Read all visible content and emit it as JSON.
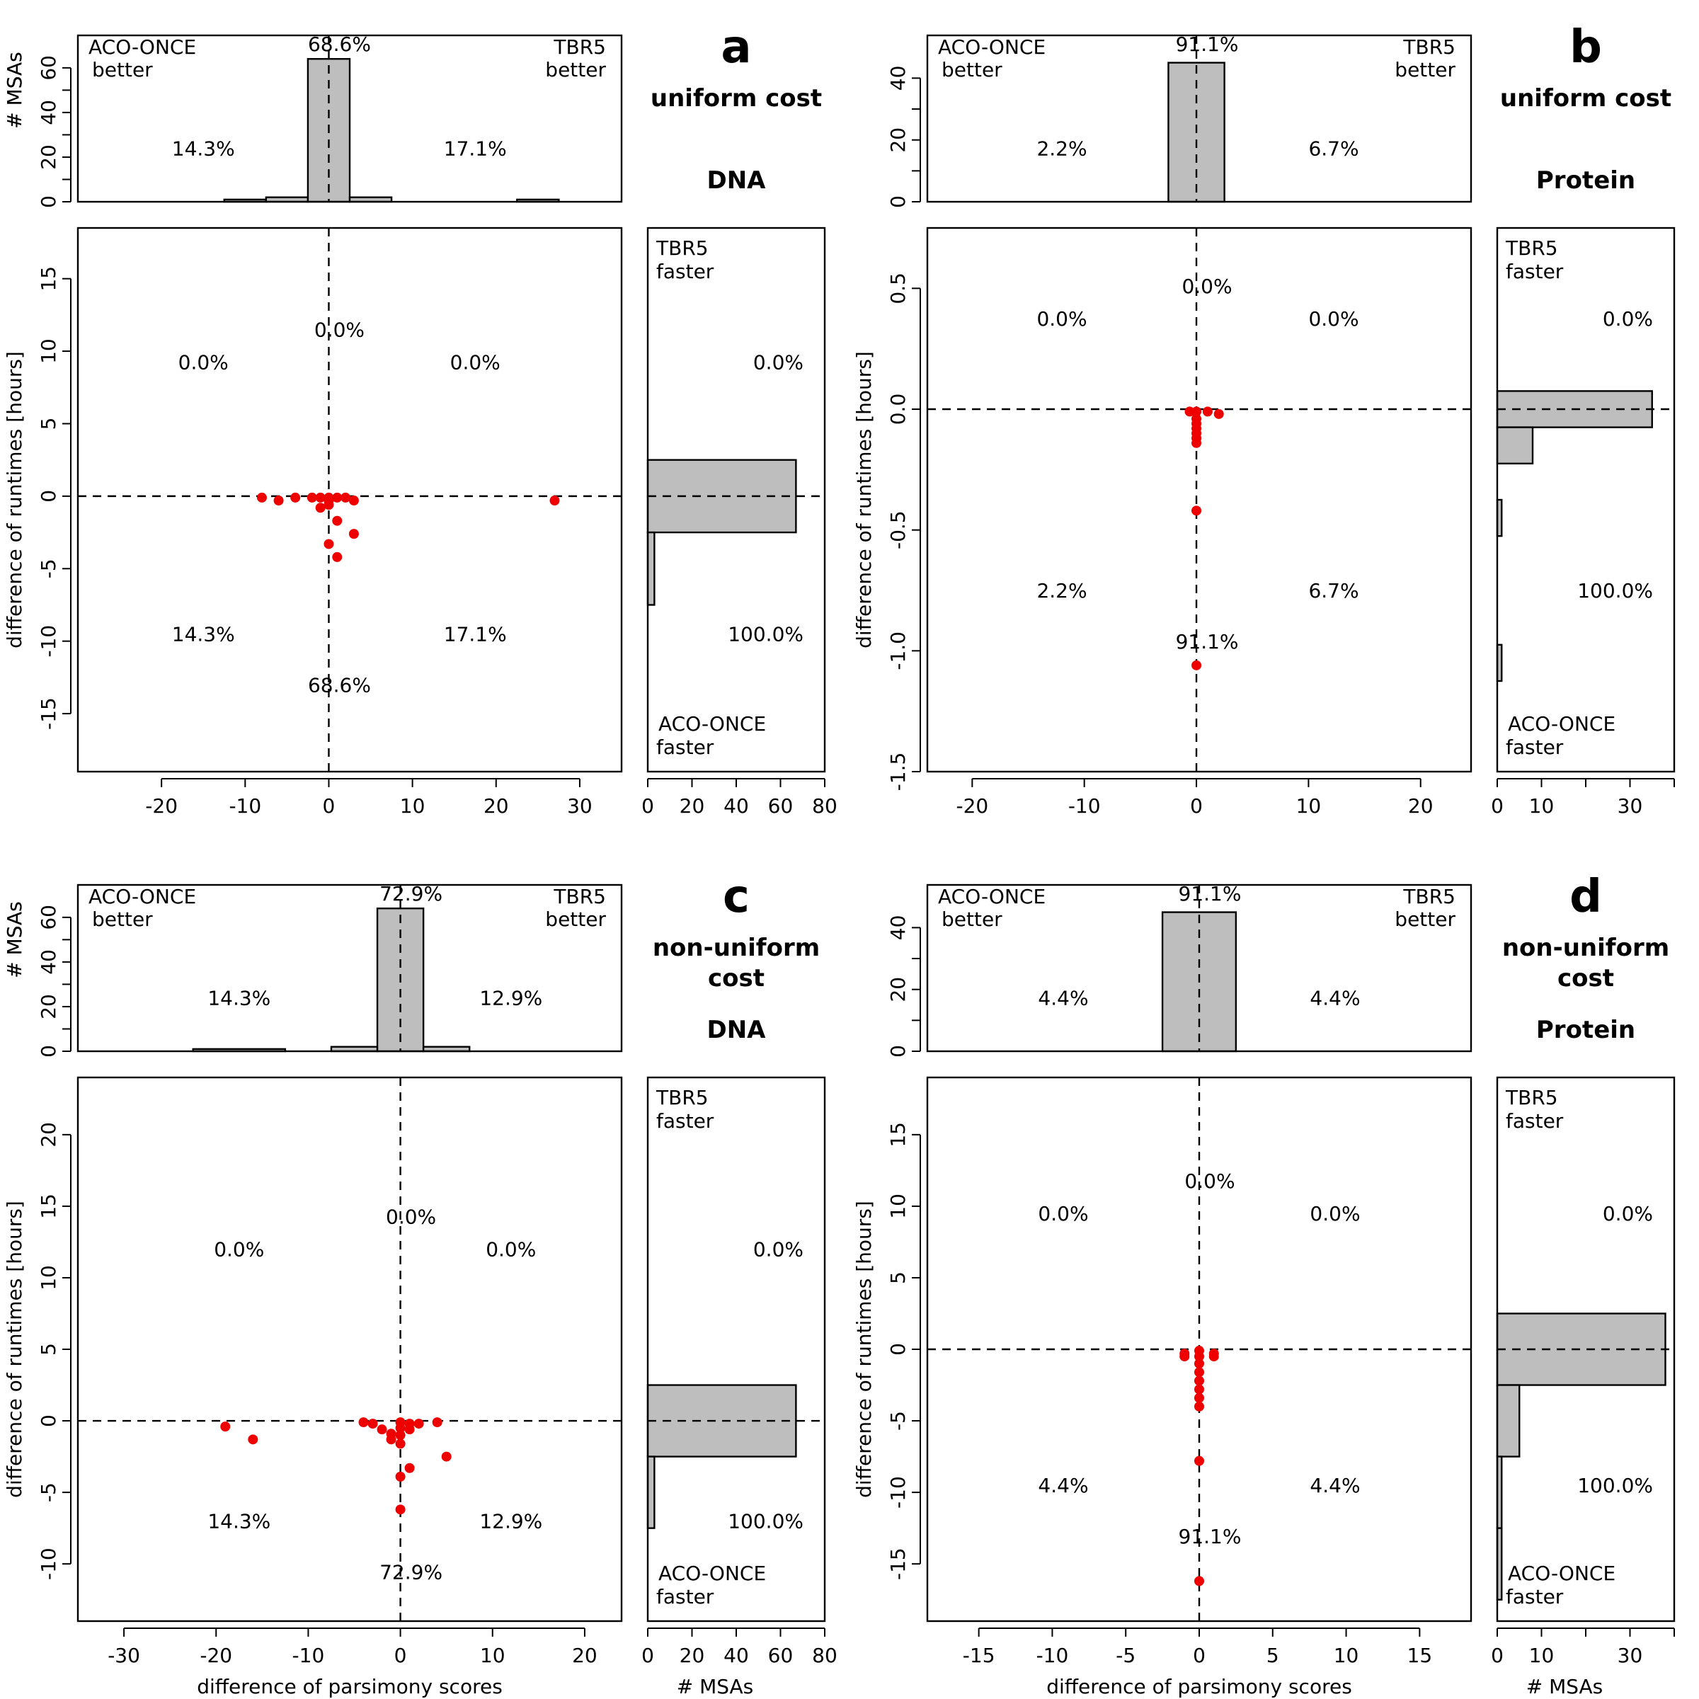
{
  "panels": [
    {
      "id": "a",
      "letter": "a",
      "subtitle": [
        "uniform cost"
      ],
      "dataset": "DNA",
      "x_range": [
        -30,
        35
      ],
      "x_ticks": [
        -20,
        -10,
        0,
        10,
        20,
        30
      ],
      "y_range": [
        -19,
        18.5
      ],
      "y_ticks": [
        -15,
        -10,
        -5,
        0,
        5,
        10,
        15
      ],
      "top_ymax": 72,
      "top_ticks": [
        0,
        20,
        40,
        60
      ],
      "top_bars": [
        {
          "x0": -12.5,
          "x1": -7.5,
          "count": 1
        },
        {
          "x0": -7.5,
          "x1": -2.5,
          "count": 2
        },
        {
          "x0": -2.5,
          "x1": 2.5,
          "count": 64
        },
        {
          "x0": 2.5,
          "x1": 7.5,
          "count": 2
        },
        {
          "x0": 22.5,
          "x1": 27.5,
          "count": 1
        }
      ],
      "right_xmax": 80,
      "right_ticks": [
        0,
        20,
        40,
        60,
        80
      ],
      "right_bars": [
        {
          "y0": -2.5,
          "y1": 2.5,
          "count": 67
        },
        {
          "y0": -7.5,
          "y1": -2.5,
          "count": 3
        }
      ],
      "points": [
        [
          -8,
          -0.1
        ],
        [
          -6,
          -0.3
        ],
        [
          -4,
          -0.1
        ],
        [
          -2,
          -0.1
        ],
        [
          -1,
          -0.1
        ],
        [
          0,
          -0.1
        ],
        [
          0,
          -0.3
        ],
        [
          0,
          -0.6
        ],
        [
          -1,
          -0.8
        ],
        [
          1,
          -0.1
        ],
        [
          2,
          -0.1
        ],
        [
          3,
          -0.3
        ],
        [
          1,
          -1.7
        ],
        [
          3,
          -2.6
        ],
        [
          0,
          -3.3
        ],
        [
          1,
          -4.2
        ],
        [
          27,
          -0.3
        ]
      ],
      "pct": {
        "x_left": "14.3%",
        "x_right": "17.1%",
        "x_center": "68.6%",
        "y_upper": "0.0%",
        "y_lower": "100.0%",
        "q_ul": "0.0%",
        "q_ur": "0.0%",
        "q_ll": "14.3%",
        "q_lr": "17.1%",
        "c_up": "0.0%",
        "c_down": "68.6%"
      },
      "show_xlabel": false
    },
    {
      "id": "b",
      "letter": "b",
      "subtitle": [
        "uniform cost"
      ],
      "dataset": "Protein",
      "x_range": [
        -24,
        24.5
      ],
      "x_ticks": [
        -20,
        -10,
        0,
        10,
        20
      ],
      "y_range": [
        -1.5,
        0.75
      ],
      "y_ticks": [
        -1.5,
        -1.0,
        -0.5,
        0.0,
        0.5
      ],
      "top_ymax": 52,
      "top_ticks": [
        0,
        20,
        40
      ],
      "top_bars": [
        {
          "x0": -2.5,
          "x1": 2.5,
          "count": 45
        }
      ],
      "right_xmax": 40,
      "right_ticks": [
        0,
        10,
        30
      ],
      "right_bars": [
        {
          "y0": -0.075,
          "y1": 0.075,
          "count": 35
        },
        {
          "y0": -0.225,
          "y1": -0.075,
          "count": 8
        },
        {
          "y0": -0.525,
          "y1": -0.375,
          "count": 1
        },
        {
          "y0": -1.125,
          "y1": -0.975,
          "count": 1
        }
      ],
      "points": [
        [
          0,
          -0.01
        ],
        [
          -0.6,
          -0.01
        ],
        [
          1,
          -0.01
        ],
        [
          2,
          -0.02
        ],
        [
          0,
          -0.04
        ],
        [
          0,
          -0.06
        ],
        [
          0,
          -0.08
        ],
        [
          0,
          -0.1
        ],
        [
          0,
          -0.12
        ],
        [
          0,
          -0.14
        ],
        [
          0,
          -0.42
        ],
        [
          0,
          -1.06
        ]
      ],
      "pct": {
        "x_left": "2.2%",
        "x_right": "6.7%",
        "x_center": "91.1%",
        "y_upper": "0.0%",
        "y_lower": "100.0%",
        "q_ul": "0.0%",
        "q_ur": "0.0%",
        "q_ll": "2.2%",
        "q_lr": "6.7%",
        "c_up": "0.0%",
        "c_down": "91.1%"
      },
      "show_xlabel": false
    },
    {
      "id": "c",
      "letter": "c",
      "subtitle": [
        "non-uniform",
        "cost"
      ],
      "dataset": "DNA",
      "x_range": [
        -35,
        24
      ],
      "x_ticks": [
        -30,
        -20,
        -10,
        0,
        10,
        20
      ],
      "y_range": [
        -14,
        24
      ],
      "y_ticks": [
        -10,
        -5,
        0,
        5,
        10,
        15,
        20
      ],
      "top_ymax": 72,
      "top_ticks": [
        0,
        20,
        40,
        60
      ],
      "top_bars": [
        {
          "x0": -22.5,
          "x1": -12.5,
          "count": 1
        },
        {
          "x0": -7.5,
          "x1": -2.5,
          "count": 2
        },
        {
          "x0": -2.5,
          "x1": 2.5,
          "count": 64
        },
        {
          "x0": 2.5,
          "x1": 7.5,
          "count": 2
        }
      ],
      "right_xmax": 80,
      "right_ticks": [
        0,
        20,
        40,
        60,
        80
      ],
      "right_bars": [
        {
          "y0": -2.5,
          "y1": 2.5,
          "count": 67
        },
        {
          "y0": -7.5,
          "y1": -2.5,
          "count": 3
        }
      ],
      "points": [
        [
          -19,
          -0.4
        ],
        [
          -16,
          -1.3
        ],
        [
          -4,
          -0.1
        ],
        [
          -3,
          -0.2
        ],
        [
          -2,
          -0.6
        ],
        [
          -1,
          -0.9
        ],
        [
          -1,
          -1.3
        ],
        [
          0,
          -0.1
        ],
        [
          0,
          -0.5
        ],
        [
          0,
          -1.0
        ],
        [
          0,
          -1.6
        ],
        [
          1,
          -0.2
        ],
        [
          1,
          -0.6
        ],
        [
          2,
          -0.2
        ],
        [
          4,
          -0.1
        ],
        [
          1,
          -3.3
        ],
        [
          5,
          -2.5
        ],
        [
          0,
          -3.9
        ],
        [
          0,
          -6.2
        ]
      ],
      "pct": {
        "x_left": "14.3%",
        "x_right": "12.9%",
        "x_center": "72.9%",
        "y_upper": "0.0%",
        "y_lower": "100.0%",
        "q_ul": "0.0%",
        "q_ur": "0.0%",
        "q_ll": "14.3%",
        "q_lr": "12.9%",
        "c_up": "0.0%",
        "c_down": "72.9%"
      },
      "show_xlabel": true
    },
    {
      "id": "d",
      "letter": "d",
      "subtitle": [
        "non-uniform",
        "cost"
      ],
      "dataset": "Protein",
      "x_range": [
        -18.5,
        18.5
      ],
      "x_ticks": [
        -15,
        -10,
        -5,
        0,
        5,
        10,
        15
      ],
      "y_range": [
        -19,
        19
      ],
      "y_ticks": [
        -15,
        -10,
        -5,
        0,
        5,
        10,
        15
      ],
      "top_ymax": 52,
      "top_ticks": [
        0,
        20,
        40
      ],
      "top_bars": [
        {
          "x0": -2.5,
          "x1": 2.5,
          "count": 45
        }
      ],
      "right_xmax": 40,
      "right_ticks": [
        0,
        10,
        30
      ],
      "right_bars": [
        {
          "y0": -2.5,
          "y1": 2.5,
          "count": 38
        },
        {
          "y0": -7.5,
          "y1": -2.5,
          "count": 5
        },
        {
          "y0": -12.5,
          "y1": -7.5,
          "count": 1
        },
        {
          "y0": -17.5,
          "y1": -12.5,
          "count": 1
        }
      ],
      "points": [
        [
          -1,
          -0.3
        ],
        [
          -1,
          -0.5
        ],
        [
          1,
          -0.3
        ],
        [
          1,
          -0.5
        ],
        [
          0,
          -0.1
        ],
        [
          0,
          -0.5
        ],
        [
          0,
          -1.0
        ],
        [
          0,
          -1.6
        ],
        [
          0,
          -2.2
        ],
        [
          0,
          -2.8
        ],
        [
          0,
          -3.4
        ],
        [
          0,
          -4.0
        ],
        [
          0,
          -7.8
        ],
        [
          0,
          -16.2
        ]
      ],
      "pct": {
        "x_left": "4.4%",
        "x_right": "4.4%",
        "x_center": "91.1%",
        "y_upper": "0.0%",
        "y_lower": "100.0%",
        "q_ul": "0.0%",
        "q_ur": "0.0%",
        "q_ll": "4.4%",
        "q_lr": "4.4%",
        "c_up": "0.0%",
        "c_down": "91.1%"
      },
      "show_xlabel": true
    }
  ],
  "labels": {
    "aco_once": "ACO-ONCE",
    "tbr5": "TBR5",
    "better": "better",
    "faster": "faster",
    "msas": "# MSAs",
    "ylabel": "difference of runtimes [hours]",
    "xlabel": "difference of parsimony scores"
  },
  "colors": {
    "point": "#ee0000",
    "bar": "#bebebe",
    "dash": "#000000"
  },
  "chart_data": [
    {
      "type": "scatter",
      "panel": "a",
      "title": "uniform cost DNA",
      "xlabel": "",
      "ylabel": "difference of runtimes [hours]",
      "xlim": [
        -30,
        35
      ],
      "ylim": [
        -19,
        18.5
      ],
      "series": [
        {
          "name": "",
          "points": [
            [
              -8,
              -0.1
            ],
            [
              -6,
              -0.3
            ],
            [
              -4,
              -0.1
            ],
            [
              -2,
              -0.1
            ],
            [
              -1,
              -0.1
            ],
            [
              0,
              -0.1
            ],
            [
              0,
              -0.3
            ],
            [
              0,
              -0.6
            ],
            [
              -1,
              -0.8
            ],
            [
              1,
              -0.1
            ],
            [
              2,
              -0.1
            ],
            [
              3,
              -0.3
            ],
            [
              1,
              -1.7
            ],
            [
              3,
              -2.6
            ],
            [
              0,
              -3.3
            ],
            [
              1,
              -4.2
            ],
            [
              27,
              -0.3
            ]
          ]
        }
      ],
      "marginal_top_counts": [
        1,
        2,
        64,
        2,
        1
      ],
      "marginal_right_counts": [
        67,
        3
      ]
    },
    {
      "type": "scatter",
      "panel": "b",
      "title": "uniform cost Protein",
      "xlabel": "",
      "ylabel": "difference of runtimes [hours]",
      "xlim": [
        -24,
        24.5
      ],
      "ylim": [
        -1.5,
        0.75
      ],
      "series": [
        {
          "name": "",
          "points": [
            [
              0,
              -0.01
            ],
            [
              -0.6,
              -0.01
            ],
            [
              1,
              -0.01
            ],
            [
              2,
              -0.02
            ],
            [
              0,
              -0.04
            ],
            [
              0,
              -0.06
            ],
            [
              0,
              -0.08
            ],
            [
              0,
              -0.1
            ],
            [
              0,
              -0.12
            ],
            [
              0,
              -0.14
            ],
            [
              0,
              -0.42
            ],
            [
              0,
              -1.06
            ]
          ]
        }
      ],
      "marginal_top_counts": [
        45
      ],
      "marginal_right_counts": [
        35,
        8,
        1,
        1
      ]
    },
    {
      "type": "scatter",
      "panel": "c",
      "title": "non-uniform cost DNA",
      "xlabel": "difference of parsimony scores",
      "ylabel": "difference of runtimes [hours]",
      "xlim": [
        -35,
        24
      ],
      "ylim": [
        -14,
        24
      ],
      "series": [
        {
          "name": "",
          "points": [
            [
              -19,
              -0.4
            ],
            [
              -16,
              -1.3
            ],
            [
              -4,
              -0.1
            ],
            [
              -3,
              -0.2
            ],
            [
              -2,
              -0.6
            ],
            [
              -1,
              -0.9
            ],
            [
              -1,
              -1.3
            ],
            [
              0,
              -0.1
            ],
            [
              0,
              -0.5
            ],
            [
              0,
              -1.0
            ],
            [
              0,
              -1.6
            ],
            [
              1,
              -0.2
            ],
            [
              1,
              -0.6
            ],
            [
              2,
              -0.2
            ],
            [
              4,
              -0.1
            ],
            [
              1,
              -3.3
            ],
            [
              5,
              -2.5
            ],
            [
              0,
              -3.9
            ],
            [
              0,
              -6.2
            ]
          ]
        }
      ],
      "marginal_top_counts": [
        1,
        2,
        64,
        2
      ],
      "marginal_right_counts": [
        67,
        3
      ]
    },
    {
      "type": "scatter",
      "panel": "d",
      "title": "non-uniform cost Protein",
      "xlabel": "difference of parsimony scores",
      "ylabel": "difference of runtimes [hours]",
      "xlim": [
        -18.5,
        18.5
      ],
      "ylim": [
        -19,
        19
      ],
      "series": [
        {
          "name": "",
          "points": [
            [
              -1,
              -0.3
            ],
            [
              -1,
              -0.5
            ],
            [
              1,
              -0.3
            ],
            [
              1,
              -0.5
            ],
            [
              0,
              -0.1
            ],
            [
              0,
              -0.5
            ],
            [
              0,
              -1.0
            ],
            [
              0,
              -1.6
            ],
            [
              0,
              -2.2
            ],
            [
              0,
              -2.8
            ],
            [
              0,
              -3.4
            ],
            [
              0,
              -4.0
            ],
            [
              0,
              -7.8
            ],
            [
              0,
              -16.2
            ]
          ]
        }
      ],
      "marginal_top_counts": [
        45
      ],
      "marginal_right_counts": [
        38,
        5,
        1,
        1
      ]
    }
  ]
}
